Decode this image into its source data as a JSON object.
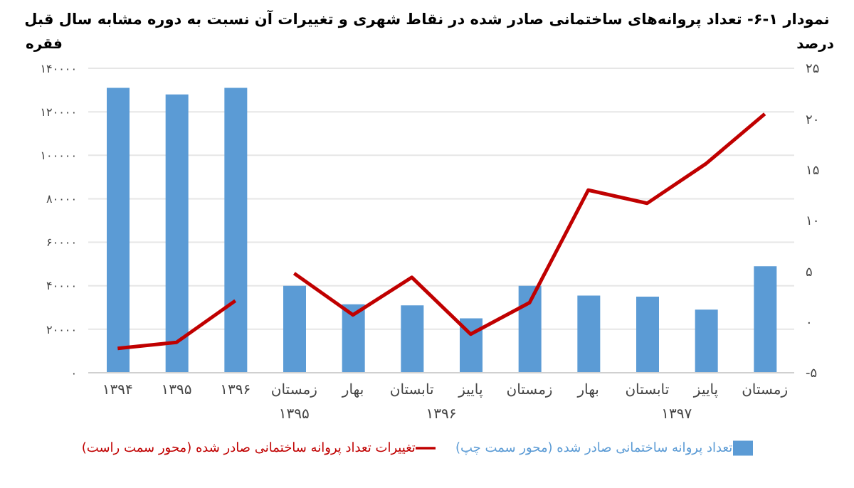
{
  "chart_data": {
    "type": "bar",
    "title": "نمودار ۱-۶- تعداد پروانه‌های ساختمانی صادر شده در نقاط شهری  و تغییرات آن نسبت به دوره مشابه سال قبل",
    "ylabel": "فقره",
    "y2label": "درصد",
    "categories": [
      "۱۳۹۴",
      "۱۳۹۵",
      "۱۳۹۶",
      "زمستان",
      "بهار",
      "تابستان",
      "پاییز",
      "زمستان",
      "بهار",
      "تابستان",
      "پاییز",
      "زمستان"
    ],
    "series": [
      {
        "name": "تعداد پروانه ساختمانی صادر شده (محور سمت چپ)",
        "color": "#5b9bd5",
        "values": [
          131000,
          128000,
          131000,
          40000,
          31500,
          31000,
          25000,
          40000,
          35500,
          35000,
          29000,
          49000
        ]
      },
      {
        "name": "تغییرات تعداد پروانه ساختمانی صادر شده (محور سمت راست)",
        "type": "line",
        "axis": "y2",
        "color": "#c00000",
        "values": [
          -2.6,
          -2,
          2.1,
          null,
          null,
          null,
          null,
          null,
          null,
          null,
          null,
          null
        ]
      },
      {
        "type": "line",
        "axis": "y2",
        "color": "#c00000",
        "values": [
          null,
          null,
          null,
          4.8,
          0.7,
          4.4,
          -1.2,
          1.9,
          13,
          11.7,
          15.6,
          20.5
        ]
      }
    ],
    "ylim": [
      0,
      140000
    ],
    "yticks": [
      {
        "value": 0,
        "label": "۰"
      },
      {
        "value": 20000,
        "label": "۲۰۰۰۰"
      },
      {
        "value": 40000,
        "label": "۴۰۰۰۰"
      },
      {
        "value": 60000,
        "label": "۶۰۰۰۰"
      },
      {
        "value": 80000,
        "label": "۸۰۰۰۰"
      },
      {
        "value": 100000,
        "label": "۱۰۰۰۰۰"
      },
      {
        "value": 120000,
        "label": "۱۲۰۰۰۰"
      },
      {
        "value": 140000,
        "label": "۱۴۰۰۰۰"
      }
    ],
    "y2lim": [
      -5,
      25
    ],
    "y2ticks": [
      {
        "value": -5,
        "label": "-۵"
      },
      {
        "value": 0,
        "label": "۰"
      },
      {
        "value": 5,
        "label": "۵"
      },
      {
        "value": 10,
        "label": "۱۰"
      },
      {
        "value": 15,
        "label": "۱۵"
      },
      {
        "value": 20,
        "label": "۲۰"
      },
      {
        "value": 25,
        "label": "۲۵"
      }
    ],
    "annotations": [
      "۱۳۹۵",
      "۱۳۹۶",
      "۱۳۹۷"
    ],
    "grid": "y",
    "legend": "bottom"
  }
}
